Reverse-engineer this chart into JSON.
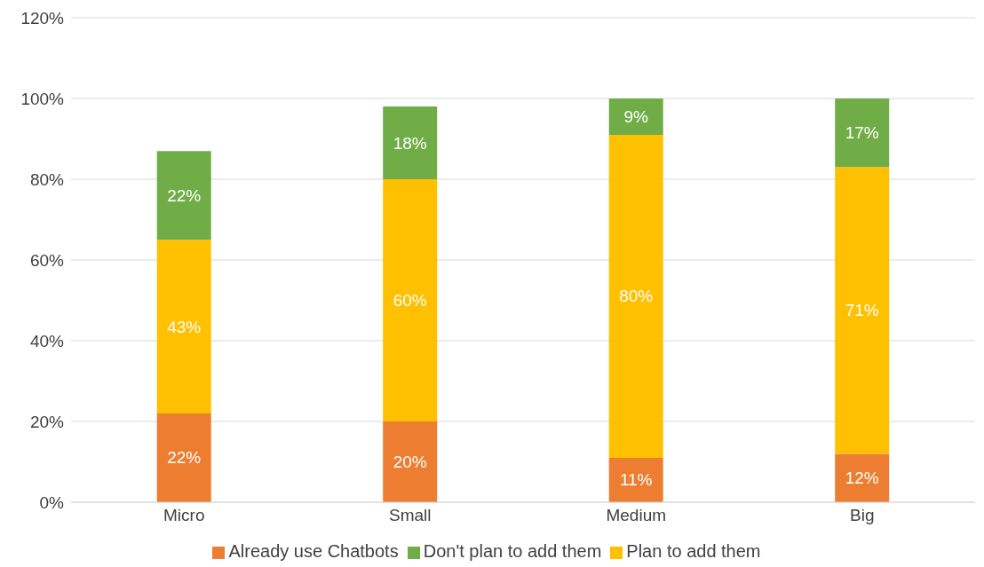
{
  "chart_data": {
    "type": "bar",
    "stacked": true,
    "categories": [
      "Micro",
      "Small",
      "Medium",
      "Big"
    ],
    "series": [
      {
        "name": "Already use Chatbots",
        "color": "#ed7d31",
        "values": [
          22,
          20,
          11,
          12
        ],
        "value_labels": [
          "22%",
          "20%",
          "11%",
          "12%"
        ]
      },
      {
        "name": "Plan to add them",
        "color": "#ffc000",
        "values": [
          43,
          60,
          80,
          71
        ],
        "value_labels": [
          "43%",
          "60%",
          "80%",
          "71%"
        ]
      },
      {
        "name": "Don't plan to add them",
        "color": "#70ad47",
        "values": [
          22,
          18,
          9,
          17
        ],
        "value_labels": [
          "22%",
          "18%",
          "9%",
          "17%"
        ]
      }
    ],
    "ylim": [
      0,
      120
    ],
    "yticks": [
      {
        "value": 0,
        "label": "0%"
      },
      {
        "value": 20,
        "label": "20%"
      },
      {
        "value": 40,
        "label": "40%"
      },
      {
        "value": 60,
        "label": "60%"
      },
      {
        "value": 80,
        "label": "80%"
      },
      {
        "value": 100,
        "label": "100%"
      },
      {
        "value": 120,
        "label": "120%"
      }
    ],
    "grid": "y",
    "legend": "bottom"
  }
}
